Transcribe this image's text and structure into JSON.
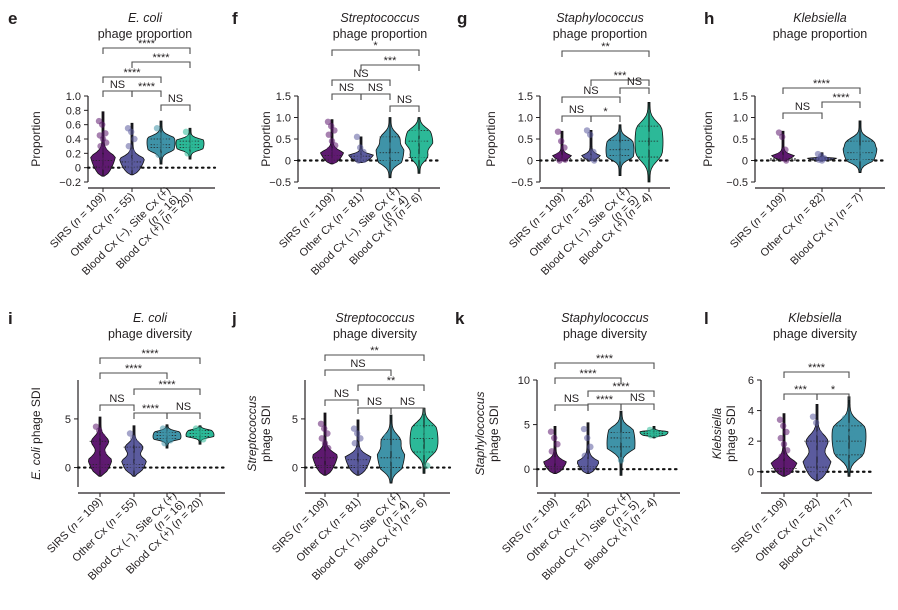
{
  "colors": {
    "SIRS": "#5e1a70",
    "Other Cx": "#5b5b9e",
    "Blood Cx (-), Site Cx (+)": "#3f93a8",
    "Blood Cx (+)": "#2cb998",
    "axis": "#231f20",
    "bracket": "#4d4d4d"
  },
  "chart_data": [
    {
      "panel": "e",
      "type": "violin",
      "title_italic": "E. coli",
      "title_rest": "phage proportion",
      "ylabel": "Proportion",
      "ylabel_italic_prefix": "",
      "ylim": [
        -0.2,
        1.0
      ],
      "yticks": [
        -0.2,
        0,
        0.2,
        0.4,
        0.6,
        0.8,
        1.0
      ],
      "ytick_labels": [
        "−0.2",
        "0",
        "0.2",
        "0.4",
        "0.6",
        "0.8",
        "1.0"
      ],
      "categories": [
        "SIRS (n = 109)",
        "Other Cx (n = 55)",
        "Blood Cx (−), Site Cx (+) (n = 16)",
        "Blood Cx (+) (n = 20)"
      ],
      "groups": [
        "SIRS",
        "Other Cx",
        "Blood Cx (-), Site Cx (+)",
        "Blood Cx (+)"
      ],
      "series": [
        {
          "name": "SIRS",
          "n": 109,
          "min": -0.12,
          "max": 0.78,
          "median": 0.02,
          "q1": 0.0,
          "q3": 0.1,
          "points": [
            0.65,
            0.6,
            0.48,
            0.45,
            0.4,
            0.35,
            0.3,
            0.25,
            0.2,
            0.15,
            0.1,
            0.05,
            0.02,
            0.0
          ]
        },
        {
          "name": "Other Cx",
          "n": 55,
          "min": -0.1,
          "max": 0.62,
          "median": 0.02,
          "q1": 0.0,
          "q3": 0.08,
          "points": [
            0.55,
            0.5,
            0.4,
            0.3,
            0.22,
            0.15,
            0.1,
            0.05,
            0.02,
            0.0
          ]
        },
        {
          "name": "Blood Cx (-), Site Cx (+)",
          "n": 16,
          "min": 0.05,
          "max": 0.65,
          "median": 0.32,
          "q1": 0.28,
          "q3": 0.4,
          "points": [
            0.55,
            0.45,
            0.38,
            0.33,
            0.3,
            0.25,
            0.18
          ]
        },
        {
          "name": "Blood Cx (+)",
          "n": 20,
          "min": 0.12,
          "max": 0.55,
          "median": 0.32,
          "q1": 0.28,
          "q3": 0.37,
          "points": [
            0.5,
            0.42,
            0.35,
            0.32,
            0.3,
            0.26,
            0.2
          ]
        }
      ],
      "comparisons": [
        {
          "a": 0,
          "b": 3,
          "label": "****"
        },
        {
          "a": 1,
          "b": 3,
          "label": "****"
        },
        {
          "a": 0,
          "b": 2,
          "label": "****"
        },
        {
          "a": 0,
          "b": 1,
          "label": "NS"
        },
        {
          "a": 1,
          "b": 2,
          "label": "****"
        },
        {
          "a": 2,
          "b": 3,
          "label": "NS"
        }
      ]
    },
    {
      "panel": "f",
      "type": "violin",
      "title_italic": "Streptococcus",
      "title_rest": "phage proportion",
      "ylabel": "Proportion",
      "ylabel_italic_prefix": "",
      "ylim": [
        -0.5,
        1.5
      ],
      "yticks": [
        -0.5,
        0,
        0.5,
        1.0,
        1.5
      ],
      "ytick_labels": [
        "−0.5",
        "0",
        "0.5",
        "1.0",
        "1.5"
      ],
      "categories": [
        "SIRS (n = 109)",
        "Other Cx (n = 81)",
        "Blood Cx (−), Site Cx (+) (n = 4)",
        "Blood Cx (+) (n = 6)"
      ],
      "groups": [
        "SIRS",
        "Other Cx",
        "Blood Cx (-), Site Cx (+)",
        "Blood Cx (+)"
      ],
      "series": [
        {
          "name": "SIRS",
          "n": 109,
          "min": -0.08,
          "max": 0.95,
          "median": 0.03,
          "q1": 0.0,
          "q3": 0.12,
          "points": [
            0.9,
            0.8,
            0.7,
            0.6,
            0.45,
            0.35,
            0.25,
            0.15,
            0.08,
            0.02,
            0.0
          ]
        },
        {
          "name": "Other Cx",
          "n": 81,
          "min": -0.05,
          "max": 0.55,
          "median": 0.03,
          "q1": 0.0,
          "q3": 0.1,
          "points": [
            0.55,
            0.3,
            0.2,
            0.12,
            0.06,
            0.02,
            0.0
          ]
        },
        {
          "name": "Blood Cx (-), Site Cx (+)",
          "n": 4,
          "min": -0.4,
          "max": 1.0,
          "median": 0.18,
          "q1": 0.0,
          "q3": 0.55,
          "points": [
            0.55,
            0.35,
            0.12,
            0.0
          ]
        },
        {
          "name": "Blood Cx (+)",
          "n": 6,
          "min": -0.3,
          "max": 1.0,
          "median": 0.45,
          "q1": 0.07,
          "q3": 0.7,
          "points": [
            0.7,
            0.65,
            0.45,
            0.3,
            0.08,
            0.05
          ]
        }
      ],
      "comparisons": [
        {
          "a": 0,
          "b": 3,
          "label": "*"
        },
        {
          "a": 1,
          "b": 3,
          "label": "***"
        },
        {
          "a": 0,
          "b": 2,
          "label": "NS"
        },
        {
          "a": 1,
          "b": 2,
          "label": "NS"
        },
        {
          "a": 0,
          "b": 1,
          "label": "NS"
        },
        {
          "a": 2,
          "b": 3,
          "label": "NS"
        }
      ]
    },
    {
      "panel": "g",
      "type": "violin",
      "title_italic": "Staphylococcus",
      "title_rest": "phage proportion",
      "ylabel": "Proportion",
      "ylabel_italic_prefix": "",
      "ylim": [
        -0.5,
        1.5
      ],
      "yticks": [
        -0.5,
        0,
        0.5,
        1.0,
        1.5
      ],
      "ytick_labels": [
        "−0.5",
        "0",
        "0.5",
        "1.0",
        "1.5"
      ],
      "categories": [
        "SIRS (n = 109)",
        "Other Cx (n = 82)",
        "Blood Cx (−), Site Cx (+) (n = 5)",
        "Blood Cx (+) (n = 4)"
      ],
      "groups": [
        "SIRS",
        "Other Cx",
        "Blood Cx (-), Site Cx (+)",
        "Blood Cx (+)"
      ],
      "series": [
        {
          "name": "SIRS",
          "n": 109,
          "min": 0.0,
          "max": 0.68,
          "median": 0.02,
          "q1": 0.0,
          "q3": 0.05,
          "points": [
            0.67,
            0.45,
            0.3,
            0.12,
            0.05,
            0.02,
            0.0
          ]
        },
        {
          "name": "Other Cx",
          "n": 82,
          "min": 0.0,
          "max": 0.7,
          "median": 0.02,
          "q1": 0.0,
          "q3": 0.05,
          "points": [
            0.7,
            0.6,
            0.2,
            0.1,
            0.05,
            0.0
          ]
        },
        {
          "name": "Blood Cx (-), Site Cx (+)",
          "n": 5,
          "min": -0.35,
          "max": 0.83,
          "median": 0.25,
          "q1": 0.12,
          "q3": 0.47,
          "points": [
            0.47,
            0.35,
            0.2,
            0.15,
            0.05
          ]
        },
        {
          "name": "Blood Cx (+)",
          "n": 4,
          "min": -0.5,
          "max": 1.35,
          "median": 0.45,
          "q1": 0.08,
          "q3": 0.8,
          "points": [
            0.78,
            0.6,
            0.3,
            0.05
          ]
        }
      ],
      "comparisons": [
        {
          "a": 0,
          "b": 3,
          "label": "**"
        },
        {
          "a": 1,
          "b": 3,
          "label": "***"
        },
        {
          "a": 2,
          "b": 3,
          "label": "NS"
        },
        {
          "a": 0,
          "b": 2,
          "label": "NS"
        },
        {
          "a": 0,
          "b": 1,
          "label": "NS"
        },
        {
          "a": 1,
          "b": 2,
          "label": "*"
        }
      ]
    },
    {
      "panel": "h",
      "type": "violin",
      "title_italic": "Klebsiella",
      "title_rest": "phage proportion",
      "ylabel": "Proportion",
      "ylabel_italic_prefix": "",
      "ylim": [
        -0.5,
        1.5
      ],
      "yticks": [
        -0.5,
        0,
        0.5,
        1.0,
        1.5
      ],
      "ytick_labels": [
        "−0.5",
        "0",
        "0.5",
        "1.0",
        "1.5"
      ],
      "categories": [
        "SIRS (n = 109)",
        "Other Cx (n = 82)",
        "Blood Cx (+) (n = 7)"
      ],
      "groups": [
        "SIRS",
        "Other Cx",
        "Blood Cx (-), Site Cx (+)"
      ],
      "series": [
        {
          "name": "SIRS",
          "n": 109,
          "min": 0.0,
          "max": 0.68,
          "median": 0.02,
          "q1": 0.0,
          "q3": 0.05,
          "points": [
            0.65,
            0.55,
            0.25,
            0.12,
            0.05,
            0.0
          ]
        },
        {
          "name": "Other Cx",
          "n": 82,
          "min": 0.0,
          "max": 0.18,
          "median": 0.02,
          "q1": 0.0,
          "q3": 0.05,
          "points": [
            0.15,
            0.1,
            0.05,
            0.02,
            0.0
          ]
        },
        {
          "name": "Blood Cx (+)",
          "n": 7,
          "min": -0.28,
          "max": 0.92,
          "median": 0.18,
          "q1": 0.02,
          "q3": 0.45,
          "points": [
            0.45,
            0.28,
            0.2,
            0.15,
            0.05,
            0.02
          ]
        }
      ],
      "comparisons": [
        {
          "a": 0,
          "b": 2,
          "label": "****"
        },
        {
          "a": 1,
          "b": 2,
          "label": "****"
        },
        {
          "a": 0,
          "b": 1,
          "label": "NS"
        }
      ]
    },
    {
      "panel": "i",
      "type": "violin",
      "title_italic": "E. coli",
      "title_rest": "phage diversity",
      "ylabel": "phage SDI",
      "ylabel_italic_prefix": "E. coli",
      "ylim": [
        -2,
        9
      ],
      "yticks": [
        0,
        5
      ],
      "ytick_labels": [
        "0",
        "5"
      ],
      "categories": [
        "SIRS (n = 109)",
        "Other Cx (n = 55)",
        "Blood Cx (−), Site Cx (+) (n = 16)",
        "Blood Cx (+) (n = 20)"
      ],
      "groups": [
        "SIRS",
        "Other Cx",
        "Blood Cx (-), Site Cx (+)",
        "Blood Cx (+)"
      ],
      "series": [
        {
          "name": "SIRS",
          "n": 109,
          "min": -0.9,
          "max": 5.2,
          "median": 0.3,
          "q1": 0.0,
          "q3": 2.7,
          "points": [
            4.2,
            3.8,
            3.2,
            2.6,
            2.0,
            1.5,
            1.0,
            0.5,
            0.2,
            0.0
          ]
        },
        {
          "name": "Other Cx",
          "n": 55,
          "min": -0.9,
          "max": 4.3,
          "median": 0.3,
          "q1": 0.0,
          "q3": 2.1,
          "points": [
            3.5,
            3.0,
            2.5,
            1.8,
            1.2,
            0.6,
            0.2,
            0.0
          ]
        },
        {
          "name": "Blood Cx (-), Site Cx (+)",
          "n": 16,
          "min": 2.0,
          "max": 4.4,
          "median": 3.3,
          "q1": 3.0,
          "q3": 3.6,
          "points": [
            4.0,
            3.7,
            3.5,
            3.3,
            3.1,
            2.8,
            2.5
          ]
        },
        {
          "name": "Blood Cx (+)",
          "n": 20,
          "min": 2.4,
          "max": 4.3,
          "median": 3.5,
          "q1": 3.2,
          "q3": 3.8,
          "points": [
            4.0,
            3.8,
            3.6,
            3.4,
            3.2,
            2.9
          ]
        }
      ],
      "comparisons": [
        {
          "a": 0,
          "b": 3,
          "label": "****"
        },
        {
          "a": 0,
          "b": 2,
          "label": "****"
        },
        {
          "a": 1,
          "b": 3,
          "label": "****"
        },
        {
          "a": 0,
          "b": 1,
          "label": "NS"
        },
        {
          "a": 1,
          "b": 2,
          "label": "****"
        },
        {
          "a": 2,
          "b": 3,
          "label": "NS"
        }
      ]
    },
    {
      "panel": "j",
      "type": "violin",
      "title_italic": "Streptococcus",
      "title_rest": "phage diversity",
      "ylabel": "phage SDI",
      "ylabel_italic_prefix": "Streptococcus",
      "ylim": [
        -2,
        9
      ],
      "yticks": [
        0,
        5
      ],
      "ytick_labels": [
        "0",
        "5"
      ],
      "categories": [
        "SIRS (n = 109)",
        "Other Cx (n = 81)",
        "Blood Cx (−), Site Cx (+) (n = 4)",
        "Blood Cx (+) (n = 6)"
      ],
      "groups": [
        "SIRS",
        "Other Cx",
        "Blood Cx (-), Site Cx (+)",
        "Blood Cx (+)"
      ],
      "series": [
        {
          "name": "SIRS",
          "n": 109,
          "min": -0.8,
          "max": 5.6,
          "median": 0.2,
          "q1": 0.0,
          "q3": 1.0,
          "points": [
            4.5,
            4.0,
            3.5,
            3.0,
            2.5,
            2.0,
            1.5,
            1.0,
            0.5,
            0.0
          ]
        },
        {
          "name": "Other Cx",
          "n": 81,
          "min": -0.8,
          "max": 4.9,
          "median": 0.2,
          "q1": 0.0,
          "q3": 0.8,
          "points": [
            4.0,
            3.5,
            3.0,
            2.5,
            1.8,
            1.0,
            0.4,
            0.0
          ]
        },
        {
          "name": "Blood Cx (-), Site Cx (+)",
          "n": 4,
          "min": -1.6,
          "max": 5.4,
          "median": 1.0,
          "q1": 0.0,
          "q3": 2.9,
          "points": [
            3.2,
            2.0,
            0.8,
            0.0
          ]
        },
        {
          "name": "Blood Cx (+)",
          "n": 6,
          "min": -0.6,
          "max": 6.1,
          "median": 3.0,
          "q1": 1.6,
          "q3": 4.3,
          "points": [
            4.3,
            3.8,
            3.2,
            2.5,
            1.6,
            0.2
          ]
        }
      ],
      "comparisons": [
        {
          "a": 0,
          "b": 3,
          "label": "**"
        },
        {
          "a": 0,
          "b": 2,
          "label": "NS"
        },
        {
          "a": 1,
          "b": 3,
          "label": "**"
        },
        {
          "a": 0,
          "b": 1,
          "label": "NS"
        },
        {
          "a": 1,
          "b": 2,
          "label": "NS"
        },
        {
          "a": 2,
          "b": 3,
          "label": "NS"
        }
      ]
    },
    {
      "panel": "k",
      "type": "violin",
      "title_italic": "Staphylococcus",
      "title_rest": "phage diversity",
      "ylabel": "phage SDI",
      "ylabel_italic_prefix": "Staphylococcus",
      "ylim": [
        -2,
        10
      ],
      "yticks": [
        0,
        5,
        10
      ],
      "ytick_labels": [
        "0",
        "5",
        "10"
      ],
      "categories": [
        "SIRS (n = 109)",
        "Other Cx (n = 82)",
        "Blood Cx (−), Site Cx (+) (n = 5)",
        "Blood Cx (+) (n = 4)"
      ],
      "groups": [
        "SIRS",
        "Other Cx",
        "Blood Cx (-), Site Cx (+)",
        "Blood Cx (+)"
      ],
      "series": [
        {
          "name": "SIRS",
          "n": 109,
          "min": -0.5,
          "max": 4.8,
          "median": 0.1,
          "q1": 0.0,
          "q3": 0.3,
          "points": [
            4.2,
            3.5,
            2.8,
            2.0,
            1.0,
            0.3,
            0.0
          ]
        },
        {
          "name": "Other Cx",
          "n": 82,
          "min": -0.5,
          "max": 5.2,
          "median": 0.1,
          "q1": 0.0,
          "q3": 0.3,
          "points": [
            4.5,
            3.5,
            2.5,
            1.5,
            0.8,
            0.3,
            0.0
          ]
        },
        {
          "name": "Blood Cx (-), Site Cx (+)",
          "n": 5,
          "min": -0.7,
          "max": 6.5,
          "median": 3.5,
          "q1": 2.5,
          "q3": 4.1,
          "points": [
            4.3,
            3.8,
            3.2,
            2.0,
            1.0
          ]
        },
        {
          "name": "Blood Cx (+)",
          "n": 4,
          "min": 3.5,
          "max": 4.8,
          "median": 4.0,
          "q1": 3.8,
          "q3": 4.2,
          "points": [
            4.4,
            4.1,
            3.9,
            3.8
          ]
        }
      ],
      "comparisons": [
        {
          "a": 0,
          "b": 3,
          "label": "****"
        },
        {
          "a": 0,
          "b": 2,
          "label": "****"
        },
        {
          "a": 1,
          "b": 3,
          "label": "****"
        },
        {
          "a": 0,
          "b": 1,
          "label": "NS"
        },
        {
          "a": 1,
          "b": 2,
          "label": "****"
        },
        {
          "a": 2,
          "b": 3,
          "label": "NS"
        }
      ]
    },
    {
      "panel": "l",
      "type": "violin",
      "title_italic": "Klebsiella",
      "title_rest": "phage diversity",
      "ylabel": "phage SDI",
      "ylabel_italic_prefix": "Klebsiella",
      "ylim": [
        -1,
        6
      ],
      "yticks": [
        0,
        2,
        4,
        6
      ],
      "ytick_labels": [
        "0",
        "2",
        "4",
        "6"
      ],
      "categories": [
        "SIRS (n = 109)",
        "Other Cx (n = 82)",
        "Blood Cx (+) (n = 7)"
      ],
      "groups": [
        "SIRS",
        "Other Cx",
        "Blood Cx (-), Site Cx (+)"
      ],
      "series": [
        {
          "name": "SIRS",
          "n": 109,
          "min": -0.3,
          "max": 3.8,
          "median": 0.05,
          "q1": 0.0,
          "q3": 0.2,
          "points": [
            3.4,
            3.0,
            2.6,
            2.2,
            1.8,
            1.4,
            1.0,
            0.5,
            0.0
          ]
        },
        {
          "name": "Other Cx",
          "n": 82,
          "min": -0.6,
          "max": 4.4,
          "median": 0.3,
          "q1": 0.0,
          "q3": 2.0,
          "points": [
            3.6,
            3.2,
            2.5,
            1.8,
            1.2,
            0.5,
            0.0
          ]
        },
        {
          "name": "Blood Cx (+)",
          "n": 7,
          "min": -0.3,
          "max": 4.9,
          "median": 2.0,
          "q1": 1.1,
          "q3": 3.0,
          "points": [
            3.5,
            3.0,
            2.5,
            2.0,
            1.3,
            0.8
          ]
        }
      ],
      "comparisons": [
        {
          "a": 0,
          "b": 2,
          "label": "****"
        },
        {
          "a": 0,
          "b": 1,
          "label": "***"
        },
        {
          "a": 1,
          "b": 2,
          "label": "*"
        }
      ]
    }
  ]
}
